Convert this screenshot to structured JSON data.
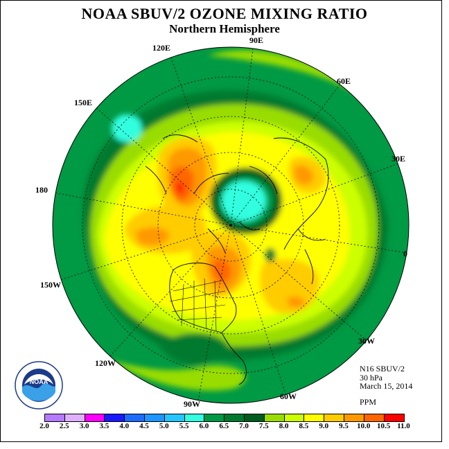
{
  "title": "NOAA SBUV/2 OZONE MIXING RATIO",
  "subtitle": "Northern Hemisphere",
  "longitude_labels": {
    "e120": "120E",
    "e90": "90E",
    "e60": "60E",
    "e150": "150E",
    "e30": "30E",
    "lon180": "180",
    "lon0": "0",
    "w150": "150W",
    "w30": "30W",
    "w120": "120W",
    "w90": "90W",
    "w60": "60W"
  },
  "info": {
    "satellite": "N16 SBUV/2",
    "level": "30 hPa",
    "date": "March 15, 2014",
    "units": "PPM"
  },
  "logo": {
    "text": "NOAA",
    "ring_text": "NATIONAL OCEANIC AND ATMOSPHERIC ADMINISTRATION · U.S. DEPARTMENT OF COMMERCE"
  },
  "colorbar": {
    "ticks": [
      "2.0",
      "2.5",
      "3.0",
      "3.5",
      "4.0",
      "4.5",
      "5.0",
      "5.5",
      "6.0",
      "6.5",
      "7.0",
      "7.5",
      "8.0",
      "8.5",
      "9.0",
      "9.5",
      "10.0",
      "10.5",
      "11.0"
    ],
    "colors": [
      "#b57bff",
      "#e0b0ff",
      "#ff00ff",
      "#1a1aff",
      "#1e6cff",
      "#1e96ff",
      "#24c6ff",
      "#33ffe0",
      "#009944",
      "#007a2e",
      "#005c1f",
      "#99dd00",
      "#ccff00",
      "#ffff00",
      "#ffcc00",
      "#ff9900",
      "#ff6600",
      "#ff0000",
      "#8b4513"
    ]
  }
}
